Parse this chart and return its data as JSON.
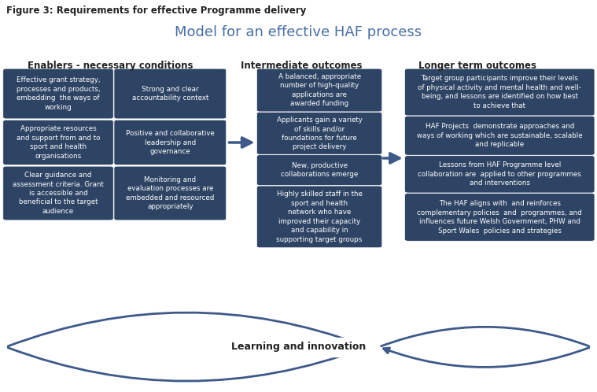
{
  "figure_title": "Figure 3: Requirements for effective Programme delivery",
  "main_title": "Model for an effective HAF process",
  "bg_color": "#ffffff",
  "box_color": "#2e4464",
  "text_color": "#ffffff",
  "arrow_color": "#3d5a8a",
  "header_color": "#222222",
  "col_headers": [
    "Enablers - necessary conditions",
    "Intermediate outcomes",
    "Longer term outcomes"
  ],
  "enablers_left": [
    "Effective grant strategy,\nprocesses and products,\nembedding  the ways of\nworking",
    "Appropriate resources\nand support from and to\nsport and health\norganisations",
    "Clear guidance and\nassessment criteria. Grant\nis accessible and\nbeneficial to the target\naudience"
  ],
  "enablers_right": [
    "Strong and clear\naccountability context",
    "Positive and collaborative\nleadership and\ngovernance",
    "Monitoring and\nevaluation processes are\nembedded and resourced\nappropriately"
  ],
  "intermediate": [
    "A balanced, appropriate\nnumber of high-quality\napplications are\nawarded funding",
    "Applicants gain a variety\nof skills and/or\nfoundations for future\nproject delivery",
    "New, productive\ncollaborations emerge",
    "Highly skilled staff in the\nsport and health\nnetwork who have\nimproved their capacity\nand capability in\nsupporting target groups"
  ],
  "longer_term": [
    "Target group participants improve their levels\nof physical activity and mental health and well-\nbeing, and lessons are identified on how best\nto achieve that",
    "HAF Projects  demonstrate approaches and\nways of working which are sustainable, scalable\nand replicable",
    "Lessons from HAF Programme level\ncollaboration are  applied to other programmes\nand interventions",
    "The HAF aligns with  and reinforces\ncomplementary policies  and  programmes, and\ninfluences future Welsh Government, PHW and\nSport Wales  policies and strategies"
  ],
  "learning_label": "Learning and innovation"
}
